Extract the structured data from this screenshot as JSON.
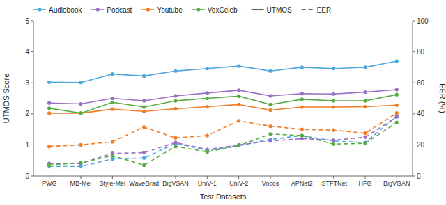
{
  "chart_data": {
    "type": "line",
    "categories": [
      "PWG",
      "MB-Mel",
      "Style-Mel",
      "WaveGrad",
      "BigVSAN",
      "UniV-1",
      "UniV-2",
      "Vocos",
      "APNet2",
      "iSTFTNet",
      "HFG",
      "BigVGAN"
    ],
    "xlabel": "Test Datasets",
    "ylabel": "UTMOS Score",
    "y2label": "EER (%)",
    "ylim": [
      0,
      5
    ],
    "yticks": [
      0,
      1,
      2,
      3,
      4,
      5
    ],
    "y2lim": [
      0,
      100
    ],
    "y2ticks": [
      0,
      20,
      40,
      60,
      80,
      100
    ],
    "grid": false,
    "legend": "upper left",
    "series": [
      {
        "name": "Audiobook",
        "color": "#4ea6dc",
        "line_style": "solid",
        "marker": "circle",
        "values": [
          3.02,
          3.01,
          3.28,
          3.22,
          3.38,
          3.46,
          3.54,
          3.38,
          3.5,
          3.46,
          3.5,
          3.7
        ]
      },
      {
        "name": "Podcast",
        "color": "#9b6fc4",
        "line_style": "solid",
        "marker": "circle",
        "values": [
          2.35,
          2.32,
          2.5,
          2.42,
          2.58,
          2.67,
          2.76,
          2.58,
          2.65,
          2.64,
          2.7,
          2.78
        ]
      },
      {
        "name": "Youtube",
        "color": "#f07d28",
        "line_style": "solid",
        "marker": "circle",
        "values": [
          2.02,
          2.02,
          2.15,
          2.08,
          2.16,
          2.23,
          2.3,
          2.12,
          2.22,
          2.22,
          2.23,
          2.28
        ]
      },
      {
        "name": "VoxCeleb",
        "color": "#5aaa46",
        "line_style": "solid",
        "marker": "circle",
        "values": [
          2.18,
          2.02,
          2.37,
          2.22,
          2.42,
          2.5,
          2.57,
          2.3,
          2.47,
          2.42,
          2.42,
          2.62
        ]
      },
      {
        "name": "Audiobook",
        "color": "#4ea6dc",
        "line_style": "dashed",
        "marker": "circle",
        "axis": "y2",
        "values": [
          6.0,
          6.0,
          11.0,
          11.5,
          21.0,
          16.5,
          19.5,
          23.5,
          26.0,
          22.5,
          21.5,
          38.5
        ]
      },
      {
        "name": "Podcast",
        "color": "#9b6fc4",
        "line_style": "dashed",
        "marker": "circle",
        "axis": "y2",
        "values": [
          8.0,
          8.0,
          14.5,
          15.0,
          21.5,
          17.0,
          20.0,
          22.5,
          24.0,
          23.0,
          25.0,
          38.0
        ]
      },
      {
        "name": "Youtube",
        "color": "#f07d28",
        "line_style": "dashed",
        "marker": "circle",
        "axis": "y2",
        "values": [
          19.0,
          20.0,
          22.0,
          31.5,
          24.5,
          26.0,
          35.5,
          32.0,
          30.0,
          29.5,
          27.5,
          40.5
        ]
      },
      {
        "name": "VoxCeleb",
        "color": "#5aaa46",
        "line_style": "dashed",
        "marker": "circle",
        "axis": "y2",
        "values": [
          7.0,
          8.5,
          13.0,
          7.0,
          19.0,
          15.5,
          19.5,
          27.0,
          26.0,
          20.5,
          21.0,
          34.5
        ]
      }
    ],
    "style_legend": [
      {
        "label": "UTMOS",
        "line_style": "solid"
      },
      {
        "label": "EER",
        "line_style": "dashed"
      }
    ]
  }
}
